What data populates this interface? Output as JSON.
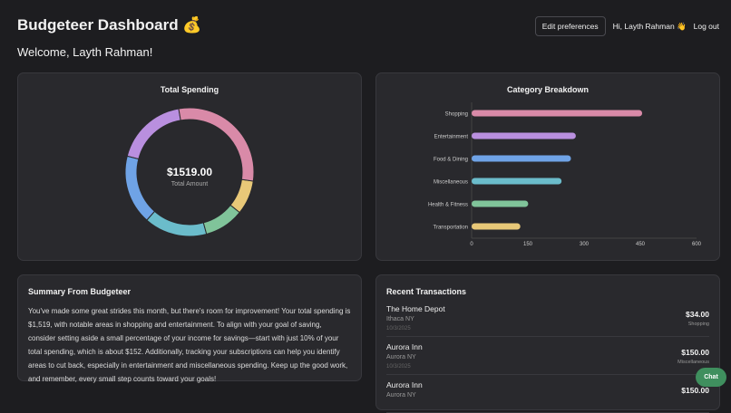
{
  "header": {
    "title": "Budgeteer Dashboard",
    "title_emoji": "💰",
    "edit_preferences": "Edit preferences",
    "greeting": "Hi, Layth Rahman 👋",
    "logout": "Log out"
  },
  "welcome": "Welcome, Layth Rahman!",
  "total_spending": {
    "title": "Total Spending",
    "amount": "$1519.00",
    "amount_label": "Total Amount"
  },
  "category_breakdown": {
    "title": "Category Breakdown"
  },
  "chart_data": [
    {
      "type": "pie",
      "title": "Total Spending",
      "categories": [
        "Shopping",
        "Transportation",
        "Health & Fitness",
        "Miscellaneous",
        "Food & Dining",
        "Entertainment"
      ],
      "values": [
        455,
        130,
        151,
        240,
        265,
        278
      ],
      "colors": [
        "#d98aa8",
        "#e8c878",
        "#80c49a",
        "#6bbccb",
        "#6fa3e6",
        "#b98fdf"
      ]
    },
    {
      "type": "bar",
      "orientation": "horizontal",
      "title": "Category Breakdown",
      "categories": [
        "Shopping",
        "Entertainment",
        "Food & Dining",
        "Miscellaneous",
        "Health & Fitness",
        "Transportation"
      ],
      "values": [
        455,
        278,
        265,
        240,
        151,
        130
      ],
      "colors": [
        "#d98aa8",
        "#b98fdf",
        "#6fa3e6",
        "#6bbccb",
        "#80c49a",
        "#e8c878"
      ],
      "xlim": [
        0,
        600
      ],
      "xticks": [
        "0",
        "150",
        "300",
        "450",
        "600"
      ],
      "grid": false
    }
  ],
  "summary": {
    "title": "Summary From Budgeteer",
    "text": "You've made some great strides this month, but there's room for improvement! Your total spending is $1,519, with notable areas in shopping and entertainment. To align with your goal of saving, consider setting aside a small percentage of your income for savings—start with just 10% of your total spending, which is about $152. Additionally, tracking your subscriptions can help you identify areas to cut back, especially in entertainment and miscellaneous spending. Keep up the good work, and remember, every small step counts toward your goals!"
  },
  "transactions": {
    "title": "Recent Transactions",
    "items": [
      {
        "name": "The Home Depot",
        "location": "Ithaca NY",
        "date": "10/3/2025",
        "amount": "$34.00",
        "category": "Shopping"
      },
      {
        "name": "Aurora Inn",
        "location": "Aurora NY",
        "date": "10/3/2025",
        "amount": "$150.00",
        "category": "Miscellaneous"
      },
      {
        "name": "Aurora Inn",
        "location": "Aurora NY",
        "date": "",
        "amount": "$150.00",
        "category": ""
      }
    ]
  },
  "chat": "Chat"
}
